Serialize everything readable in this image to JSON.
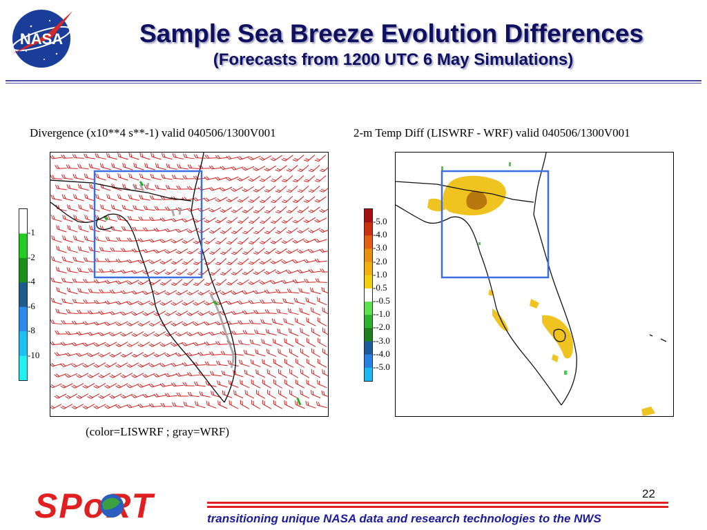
{
  "header": {
    "logo_text": "NASA",
    "title": "Sample Sea Breeze Evolution Differences",
    "subtitle": "(Forecasts from 1200 UTC 6 May Simulations)"
  },
  "left_panel": {
    "title": "Divergence (x10**4 s**-1) valid 040506/1300V001",
    "colorbar": {
      "labels": [
        "1",
        "2",
        "4",
        "6",
        "8",
        "10"
      ],
      "colors": [
        "#ffffff",
        "#22cc22",
        "#1a8f1a",
        "#1e5a8a",
        "#2a8ce8",
        "#1ec0f0",
        "#22f0f0"
      ]
    },
    "caption": "(color=LISWRF ; gray=WRF)"
  },
  "right_panel": {
    "title": "2-m Temp Diff (LISWRF - WRF) valid 040506/1300V001",
    "colorbar": {
      "labels": [
        "5.0",
        "4.0",
        "3.0",
        "2.0",
        "1.0",
        "0.5",
        "-0.5",
        "-1.0",
        "-2.0",
        "-3.0",
        "-4.0",
        "-5.0"
      ],
      "colors": [
        "#a01010",
        "#c83010",
        "#e06018",
        "#e89010",
        "#f0b010",
        "#f0d010",
        "#ffffff",
        "#60e050",
        "#30b030",
        "#208020",
        "#1e5a9a",
        "#2a80e0",
        "#20b8f0"
      ]
    }
  },
  "footer": {
    "logo_text": "SPoRT",
    "tagline": "transitioning unique NASA data and research technologies to the NWS",
    "page_number": "22"
  },
  "colors": {
    "title": "#101060",
    "wind_barb": "#d21818",
    "box": "#3a6ee0",
    "warm": "#f0b820",
    "footer_red": "#e02020"
  }
}
